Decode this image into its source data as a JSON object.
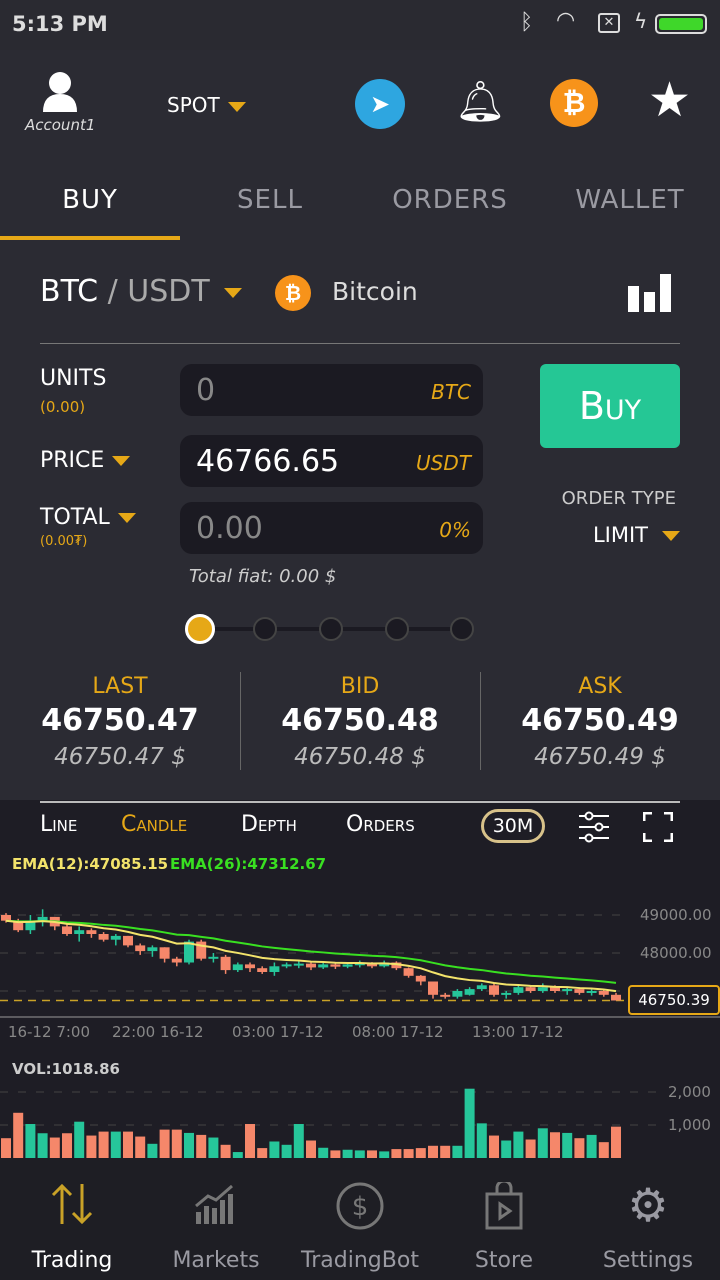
{
  "status": {
    "time": "5:13 PM"
  },
  "header": {
    "account": "Account1",
    "market": "SPOT"
  },
  "tabs": [
    {
      "label": "BUY"
    },
    {
      "label": "SELL"
    },
    {
      "label": "ORDERS"
    },
    {
      "label": "WALLET"
    }
  ],
  "pair": {
    "base": "BTC",
    "sep": " / ",
    "quote": "USDT",
    "name": "Bitcoin"
  },
  "form": {
    "units_label": "UNITS",
    "units_sub": "(0.00)",
    "units_value": "0",
    "units_unit": "BTC",
    "price_label": "PRICE",
    "price_value": "46766.65",
    "price_unit": "USDT",
    "total_label": "TOTAL",
    "total_sub": "(0.00₮)",
    "total_value": "0.00",
    "total_unit": "0%",
    "total_fiat": "Total fiat: 0.00 $",
    "buy_label": "Buy",
    "order_type_label": "ORDER TYPE",
    "order_type": "LIMIT",
    "slider_percent": 0
  },
  "stats": [
    {
      "title": "LAST",
      "price": "46750.47",
      "fiat": "46750.47 $"
    },
    {
      "title": "BID",
      "price": "46750.48",
      "fiat": "46750.48 $"
    },
    {
      "title": "ASK",
      "price": "46750.49",
      "fiat": "46750.49 $"
    }
  ],
  "chart_tabs": {
    "line": "Line",
    "candle": "Candle",
    "depth": "Depth",
    "orders": "Orders",
    "interval": "30M"
  },
  "colors": {
    "accent": "#e6a817",
    "up": "#26c69a",
    "down": "#f5876a",
    "ema12": "#f3e36b",
    "ema26": "#39e021",
    "buy": "#25c795"
  },
  "chart_data": {
    "type": "candlestick",
    "ema12_label": "EMA(12):47085.15",
    "ema26_label": "EMA(26):47312.67",
    "price_ticks": [
      "49000.00",
      "48000.00"
    ],
    "last_price": "46750.39",
    "x_ticks": [
      "7:00 16-12",
      "22:00 16-12",
      "03:00 17-12",
      "08:00 17-12",
      "13:00 17-12"
    ],
    "ohlc": [
      [
        49000,
        49050,
        48800,
        48850
      ],
      [
        48850,
        48900,
        48550,
        48600
      ],
      [
        48600,
        49000,
        48500,
        48850
      ],
      [
        48850,
        49150,
        48700,
        48950
      ],
      [
        48950,
        48950,
        48600,
        48700
      ],
      [
        48700,
        48750,
        48450,
        48500
      ],
      [
        48500,
        48700,
        48300,
        48600
      ],
      [
        48600,
        48650,
        48400,
        48500
      ],
      [
        48500,
        48550,
        48300,
        48350
      ],
      [
        48350,
        48500,
        48200,
        48450
      ],
      [
        48450,
        48450,
        48150,
        48200
      ],
      [
        48200,
        48250,
        47950,
        48050
      ],
      [
        48050,
        48200,
        47900,
        48150
      ],
      [
        48150,
        48150,
        47750,
        47850
      ],
      [
        47850,
        47900,
        47650,
        47750
      ],
      [
        47750,
        48350,
        47700,
        48300
      ],
      [
        48300,
        48350,
        47800,
        47850
      ],
      [
        47850,
        48000,
        47750,
        47900
      ],
      [
        47900,
        47950,
        47450,
        47550
      ],
      [
        47550,
        47750,
        47500,
        47700
      ],
      [
        47700,
        47750,
        47500,
        47600
      ],
      [
        47600,
        47650,
        47450,
        47500
      ],
      [
        47500,
        47750,
        47400,
        47650
      ],
      [
        47650,
        47750,
        47600,
        47700
      ],
      [
        47700,
        47800,
        47600,
        47720
      ],
      [
        47720,
        47750,
        47550,
        47620
      ],
      [
        47620,
        47750,
        47580,
        47700
      ],
      [
        47700,
        47750,
        47580,
        47640
      ],
      [
        47640,
        47750,
        47600,
        47700
      ],
      [
        47700,
        47800,
        47620,
        47730
      ],
      [
        47730,
        47760,
        47600,
        47650
      ],
      [
        47650,
        47800,
        47620,
        47750
      ],
      [
        47750,
        47780,
        47550,
        47600
      ],
      [
        47600,
        47620,
        47350,
        47400
      ],
      [
        47400,
        47420,
        47150,
        47250
      ],
      [
        47250,
        47250,
        46800,
        46900
      ],
      [
        46900,
        46950,
        46800,
        46850
      ],
      [
        46850,
        47050,
        46800,
        47000
      ],
      [
        46900,
        47100,
        46880,
        47050
      ],
      [
        47050,
        47200,
        47000,
        47150
      ],
      [
        47150,
        47200,
        46850,
        46900
      ],
      [
        46900,
        47000,
        46800,
        46950
      ],
      [
        46950,
        47150,
        46900,
        47100
      ],
      [
        47100,
        47150,
        46950,
        47000
      ],
      [
        47000,
        47200,
        46950,
        47100
      ],
      [
        47100,
        47150,
        46950,
        47000
      ],
      [
        47000,
        47100,
        46900,
        47050
      ],
      [
        47050,
        47100,
        46900,
        46950
      ],
      [
        46950,
        47050,
        46880,
        47000
      ],
      [
        47000,
        47050,
        46850,
        46900
      ],
      [
        46900,
        46950,
        46750,
        46750
      ]
    ],
    "vol_label": "VOL:1018.86",
    "vol_ticks": [
      "2,000",
      "1,000"
    ],
    "volume": [
      600,
      1370,
      1030,
      750,
      620,
      750,
      1100,
      680,
      800,
      800,
      800,
      650,
      430,
      860,
      860,
      760,
      700,
      620,
      400,
      180,
      1030,
      300,
      500,
      400,
      1030,
      530,
      310,
      230,
      250,
      230,
      230,
      200,
      270,
      270,
      300,
      370,
      370,
      370,
      2100,
      1050,
      680,
      530,
      800,
      560,
      900,
      780,
      760,
      600,
      700,
      480,
      950
    ]
  },
  "nav": [
    {
      "label": "Trading"
    },
    {
      "label": "Markets"
    },
    {
      "label": "TradingBot"
    },
    {
      "label": "Store"
    },
    {
      "label": "Settings"
    }
  ]
}
